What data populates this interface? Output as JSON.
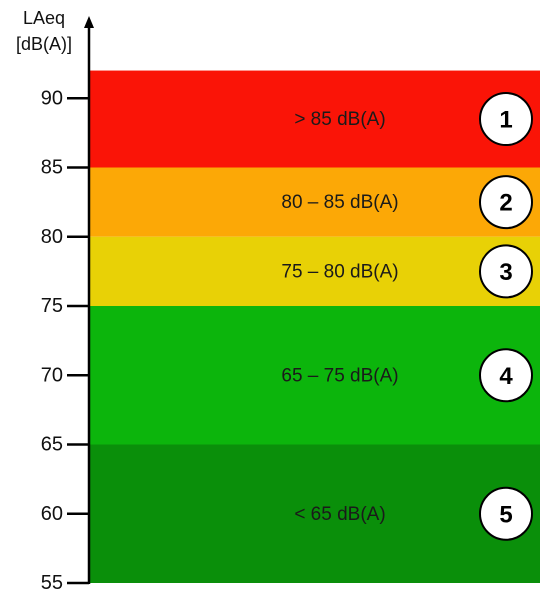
{
  "axis": {
    "title_line1": "LAeq",
    "title_line2": "[dB(A)]",
    "ylim": [
      55,
      93
    ],
    "ticks": [
      "90",
      "85",
      "80",
      "75",
      "70",
      "65",
      "60",
      "55"
    ]
  },
  "bands": [
    {
      "number": "1",
      "label": "> 85 dB(A)",
      "from": 85,
      "to": 92,
      "color": "#fa1407"
    },
    {
      "number": "2",
      "label": "80 – 85 dB(A)",
      "from": 80,
      "to": 85,
      "color": "#fca806"
    },
    {
      "number": "3",
      "label": "75 – 80 dB(A)",
      "from": 75,
      "to": 80,
      "color": "#e8d106"
    },
    {
      "number": "4",
      "label": "65 – 75 dB(A)",
      "from": 65,
      "to": 75,
      "color": "#0cb50c"
    },
    {
      "number": "5",
      "label": "< 65 dB(A)",
      "from": 55,
      "to": 65,
      "color": "#0a8f0a"
    }
  ]
}
